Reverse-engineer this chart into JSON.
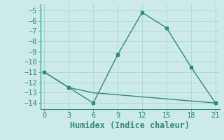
{
  "xlabel": "Humidex (Indice chaleur)",
  "line1_x": [
    0,
    3,
    6,
    9,
    12,
    15,
    18,
    21
  ],
  "line1_y": [
    -11,
    -12.5,
    -14,
    -9.3,
    -5.2,
    -6.7,
    -10.5,
    -14
  ],
  "line2_x": [
    0,
    3,
    6,
    21
  ],
  "line2_y": [
    -11,
    -12.5,
    -13.0,
    -14.0
  ],
  "line_color": "#2e8b78",
  "bg_color": "#cceaea",
  "grid_color": "#aed4d4",
  "xlim": [
    -0.5,
    21.5
  ],
  "ylim": [
    -14.6,
    -4.4
  ],
  "yticks": [
    -5,
    -6,
    -7,
    -8,
    -9,
    -10,
    -11,
    -12,
    -13,
    -14
  ],
  "xticks": [
    0,
    3,
    6,
    9,
    12,
    15,
    18,
    21
  ],
  "tick_fontsize": 7.5,
  "label_fontsize": 8.5,
  "marker_size": 2.5,
  "line_width": 1.0
}
